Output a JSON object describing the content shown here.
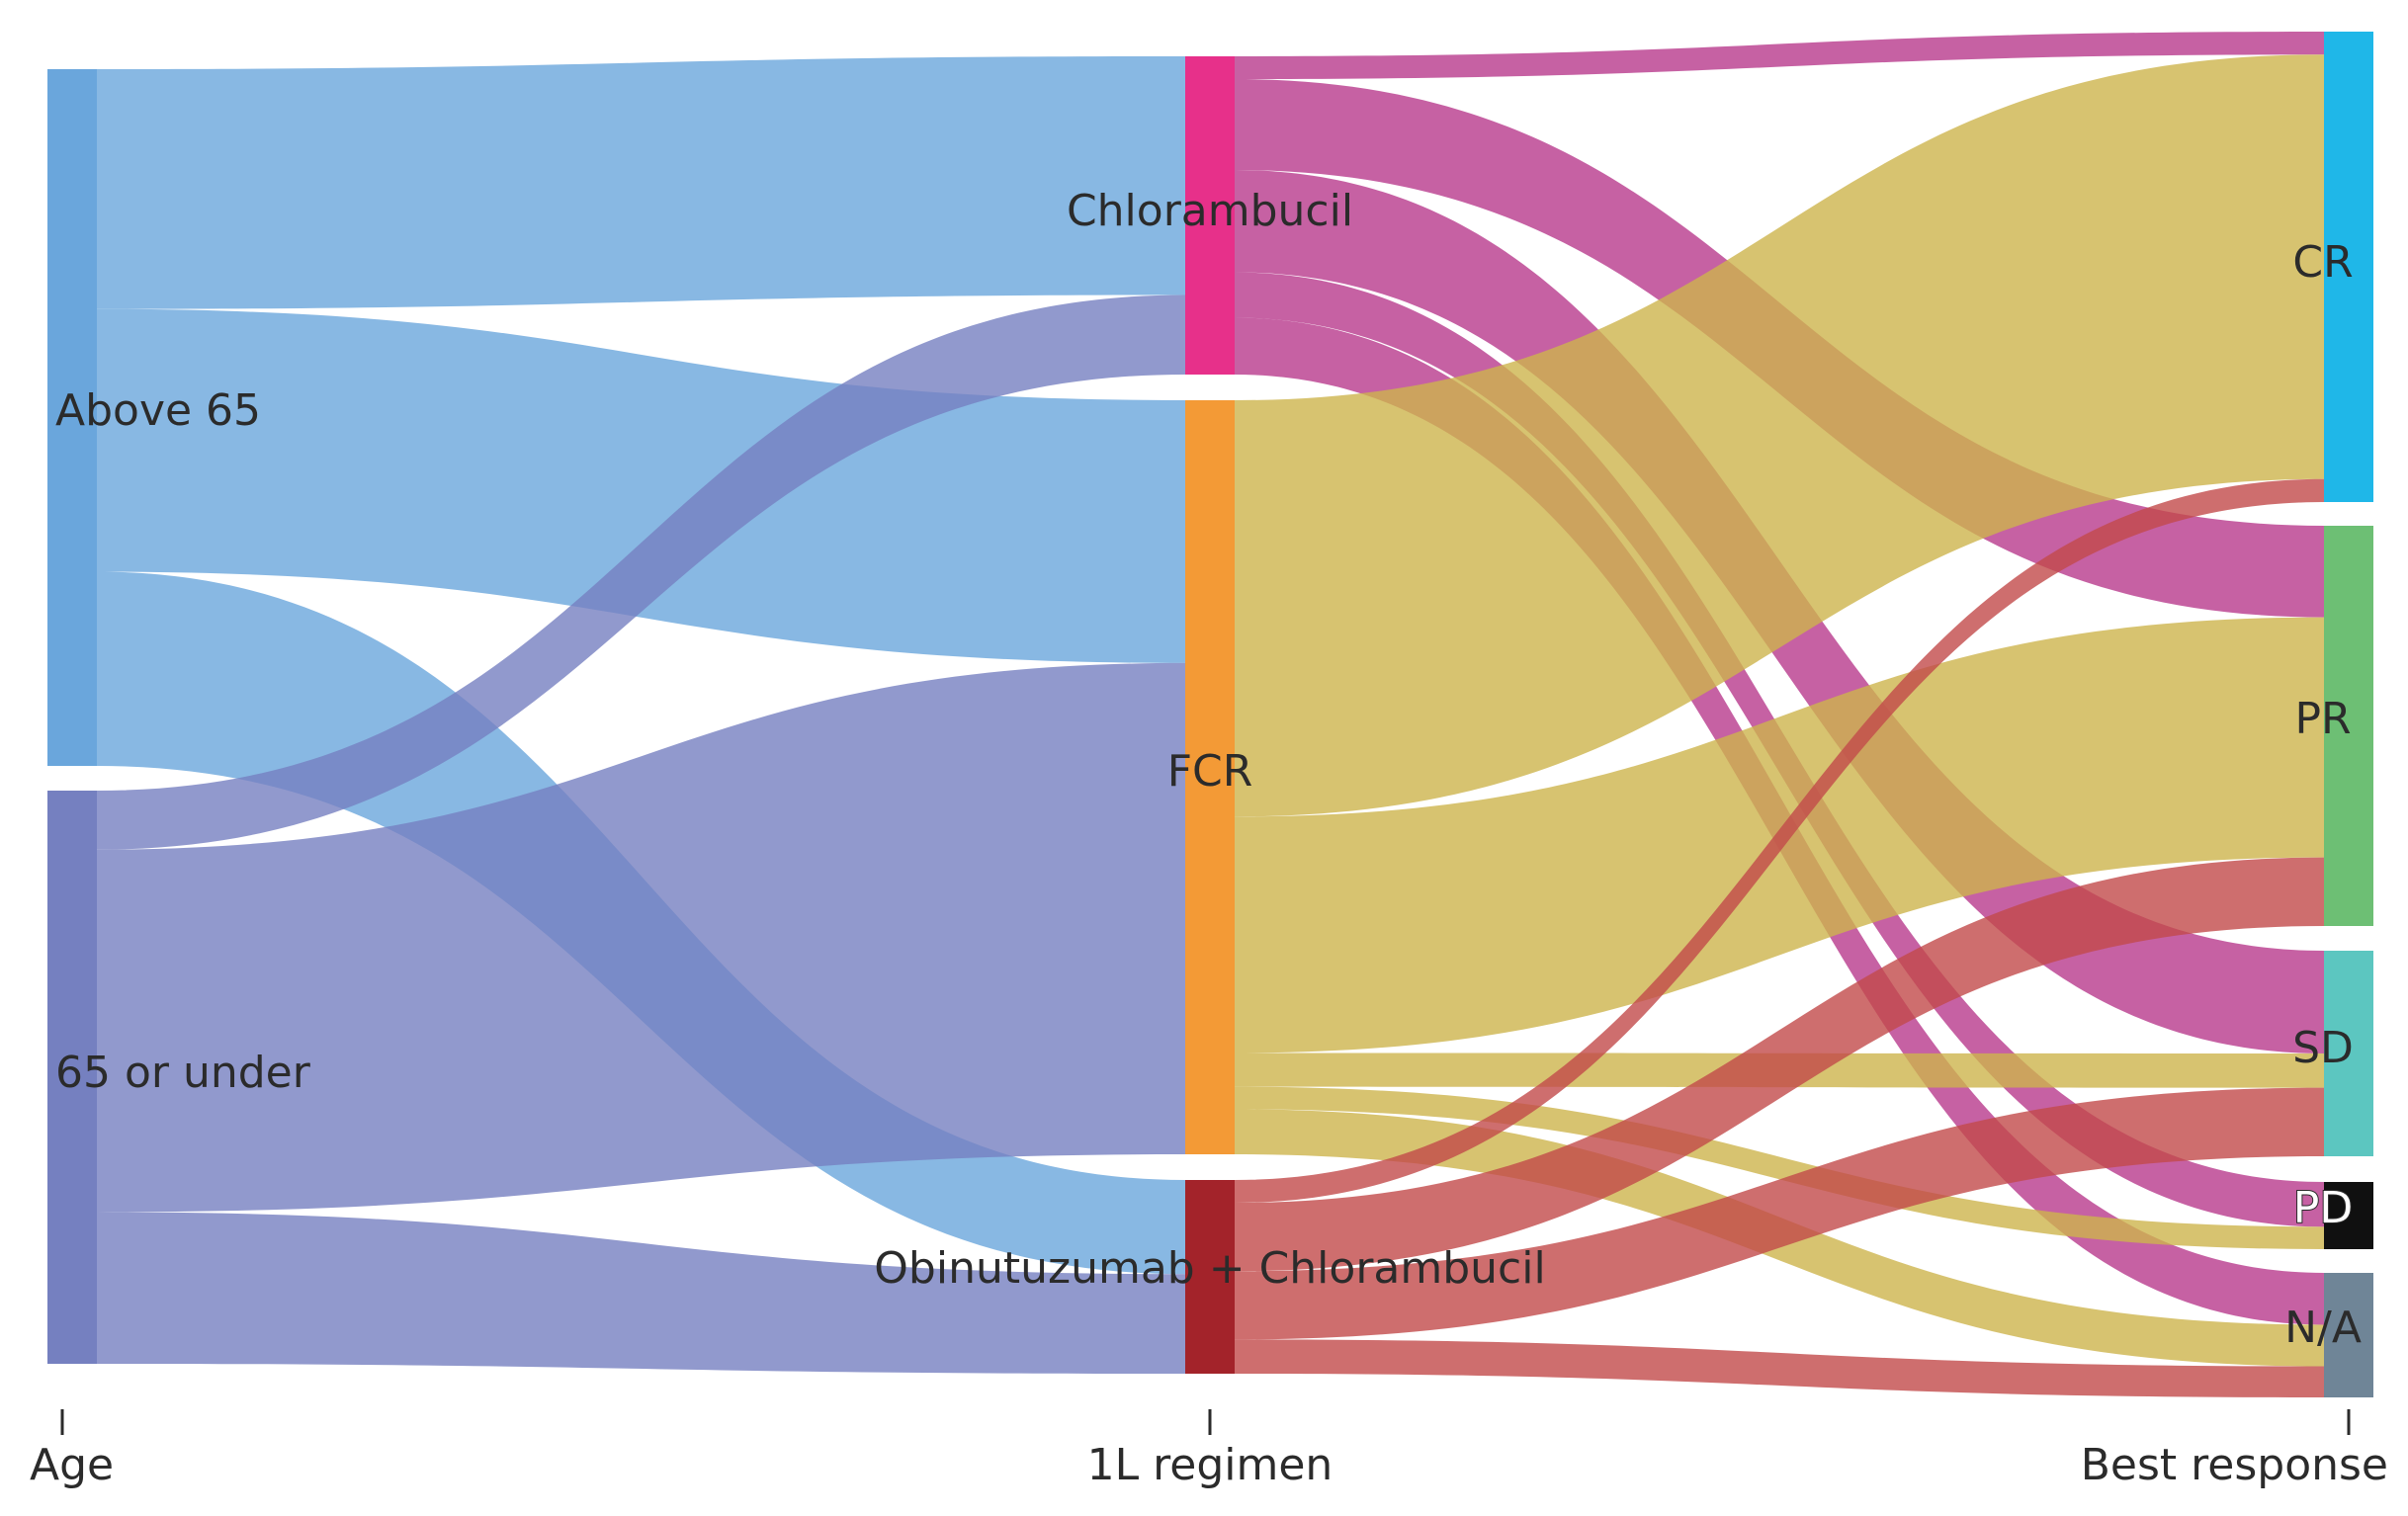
{
  "axes": {
    "age": "Age",
    "regimen": "1L regimen",
    "response": "Best response"
  },
  "nodes": {
    "above65": "Above 65",
    "under65": "65 or under",
    "chlorambucil": "Chlorambucil",
    "fcr": "FCR",
    "obin": "Obinutuzumab + Chlorambucil",
    "cr": "CR",
    "pr": "PR",
    "sd": "SD",
    "pd": "PD",
    "na": "N/A"
  },
  "colors": {
    "age_above65": "#6aa6dc",
    "age_under65": "#7580c0",
    "chlorambucil": "#e7308a",
    "fcr": "#f39a36",
    "obin": "#a3232a",
    "cr": "#1fb7e8",
    "pr": "#6dbf74",
    "sd": "#5cc6c0",
    "pd": "#101010",
    "na": "#6f8597",
    "link_above65": "#6aa6dc",
    "link_under65": "#7580c0",
    "link_chlorambucil": "#b83a8c",
    "link_fcr": "#cdb44c",
    "link_obin": "#c24a4a"
  },
  "chart_data": {
    "type": "sankey",
    "columns": [
      "Age",
      "1L regimen",
      "Best response"
    ],
    "links": [
      {
        "source": "Above 65",
        "target": "Chlorambucil",
        "value": 10.5
      },
      {
        "source": "Above 65",
        "target": "FCR",
        "value": 11.5
      },
      {
        "source": "Above 65",
        "target": "Obinutuzumab + Chlorambucil",
        "value": 8.5
      },
      {
        "source": "65 or under",
        "target": "Chlorambucil",
        "value": 3.5
      },
      {
        "source": "65 or under",
        "target": "FCR",
        "value": 21.5
      },
      {
        "source": "65 or under",
        "target": "Obinutuzumab + Chlorambucil",
        "value": 9
      },
      {
        "source": "Chlorambucil",
        "target": "CR",
        "value": 1
      },
      {
        "source": "Chlorambucil",
        "target": "PR",
        "value": 4
      },
      {
        "source": "Chlorambucil",
        "target": "SD",
        "value": 4.5
      },
      {
        "source": "Chlorambucil",
        "target": "PD",
        "value": 2
      },
      {
        "source": "Chlorambucil",
        "target": "N/A",
        "value": 2.5
      },
      {
        "source": "FCR",
        "target": "CR",
        "value": 18.5
      },
      {
        "source": "FCR",
        "target": "PR",
        "value": 10.5
      },
      {
        "source": "FCR",
        "target": "SD",
        "value": 1.5
      },
      {
        "source": "FCR",
        "target": "PD",
        "value": 1
      },
      {
        "source": "FCR",
        "target": "N/A",
        "value": 2
      },
      {
        "source": "Obinutuzumab + Chlorambucil",
        "target": "CR",
        "value": 1
      },
      {
        "source": "Obinutuzumab + Chlorambucil",
        "target": "PR",
        "value": 3
      },
      {
        "source": "Obinutuzumab + Chlorambucil",
        "target": "SD",
        "value": 3
      },
      {
        "source": "Obinutuzumab + Chlorambucil",
        "target": "PD",
        "value": 0
      },
      {
        "source": "Obinutuzumab + Chlorambucil",
        "target": "N/A",
        "value": 1.5
      }
    ]
  }
}
